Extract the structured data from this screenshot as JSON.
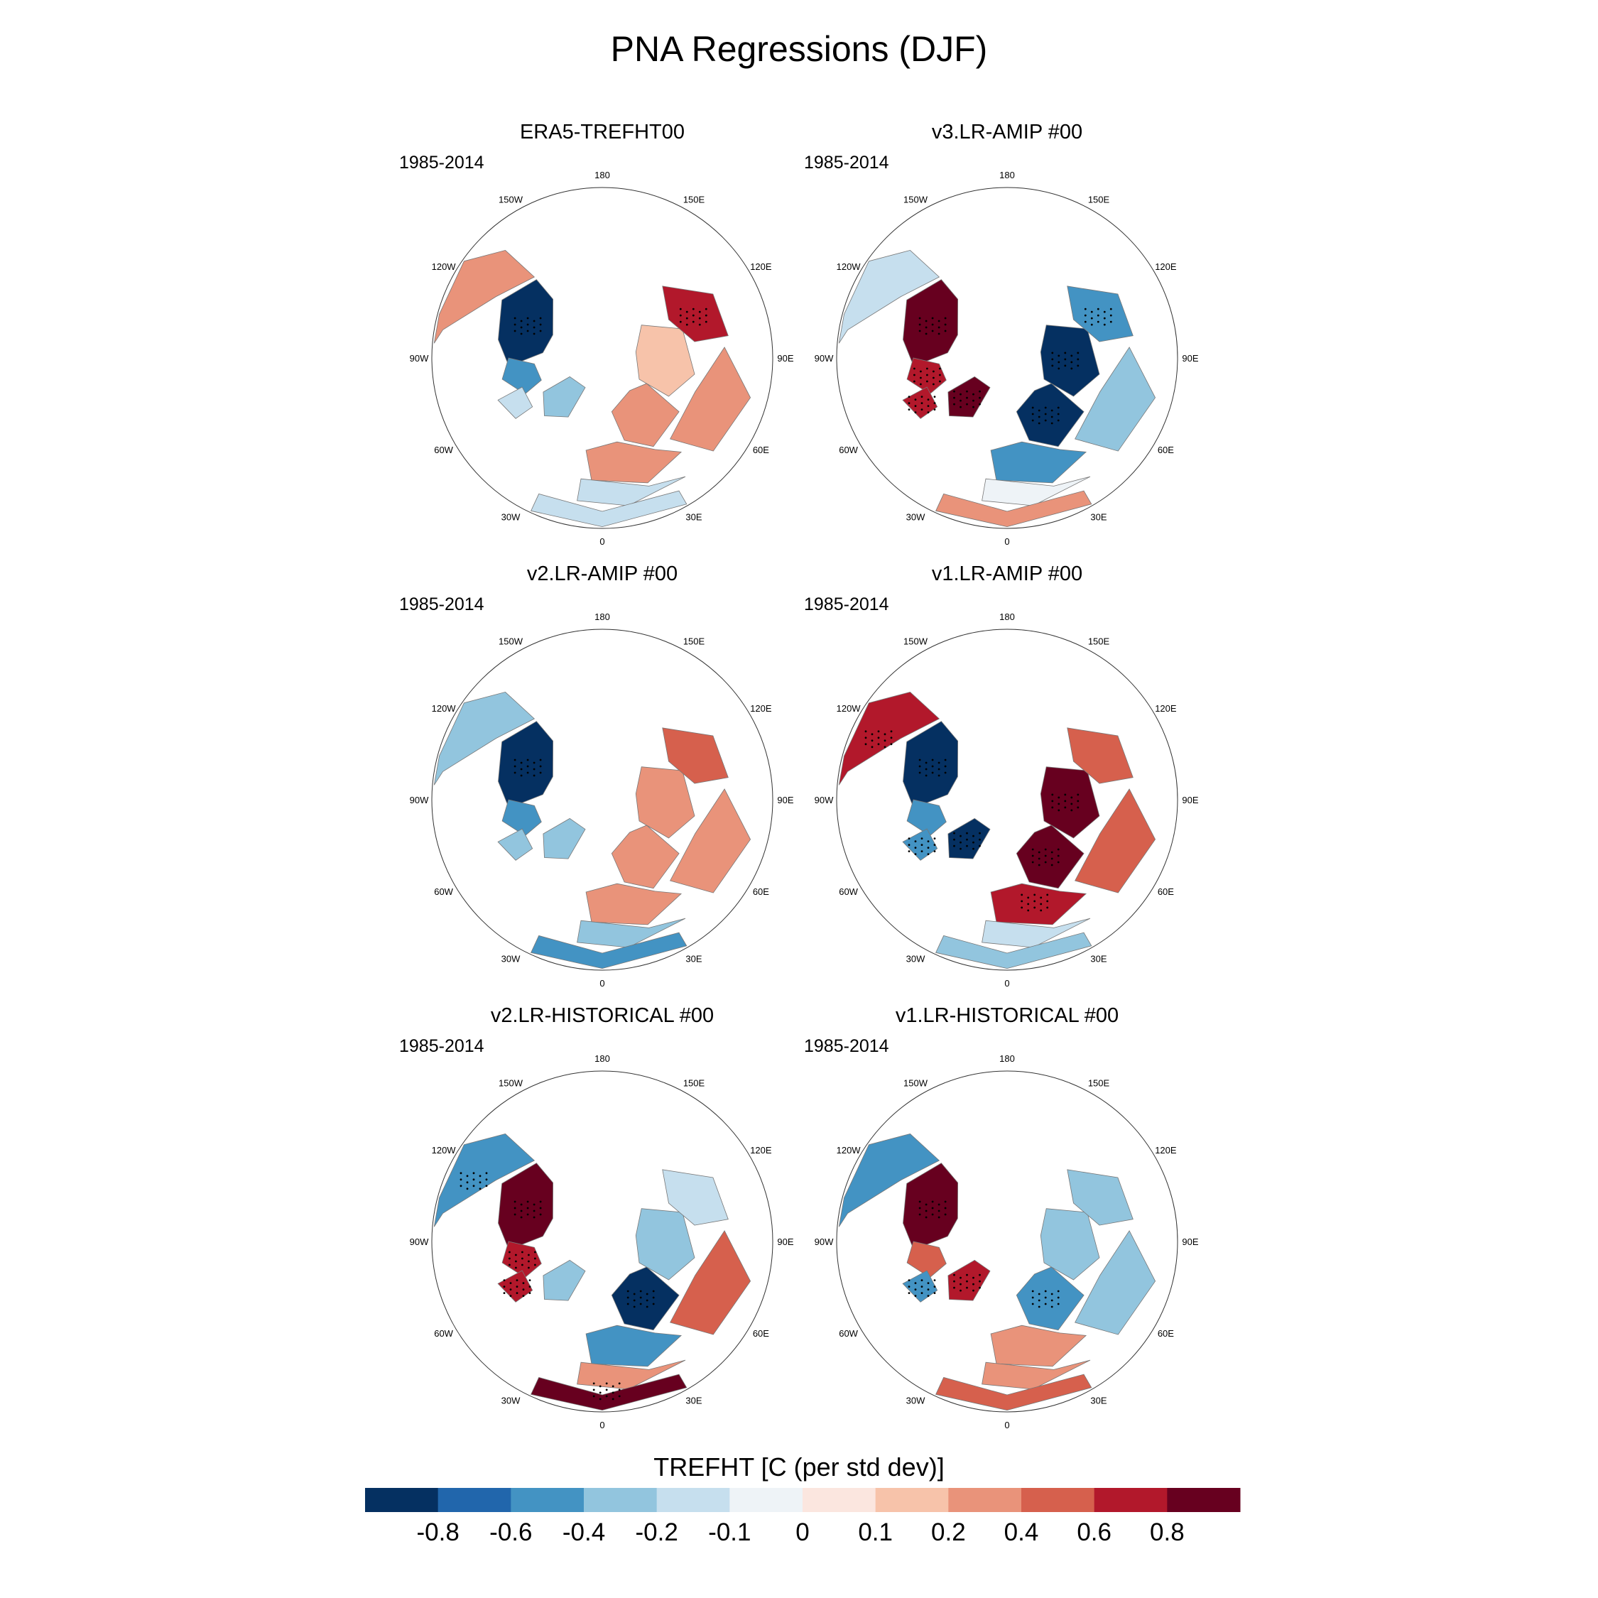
{
  "title": "PNA Regressions (DJF)",
  "chart_data": {
    "type": "heatmap",
    "title": "PNA Regressions (DJF)",
    "projection": "north polar stereographic",
    "variable_label": "TREFHT [C (per std dev)]",
    "longitude_labels": [
      "180",
      "150E",
      "120E",
      "90E",
      "60E",
      "30E",
      "0",
      "30W",
      "60W",
      "90W",
      "120W",
      "150W"
    ],
    "colorbar": {
      "tick_labels": [
        "-0.8",
        "-0.6",
        "-0.4",
        "-0.2",
        "-0.1",
        "0",
        "0.1",
        "0.2",
        "0.4",
        "0.6",
        "0.8"
      ],
      "colors": [
        "#053061",
        "#2166ac",
        "#4393c3",
        "#92c5de",
        "#c6dfee",
        "#eef3f7",
        "#fbe6df",
        "#f7c3aa",
        "#e9937a",
        "#d6604d",
        "#b2182b",
        "#67001f"
      ]
    },
    "panels": [
      {
        "name": "ERA5-TREFHT00",
        "period": "1985-2014",
        "regions": {
          "north_america_west": 0.3,
          "canada": -0.85,
          "hudson_bay": -0.5,
          "greenland": -0.4,
          "scandinavia": 0.3,
          "europe": 0.2,
          "siberia": 0.15,
          "east_siberia": 0.7,
          "central_asia": 0.3,
          "north_africa": -0.15,
          "mediterranean": -0.2,
          "labrador": -0.2
        }
      },
      {
        "name": "v3.LR-AMIP  #00",
        "period": "1985-2014",
        "regions": {
          "north_america_west": -0.2,
          "canada": 0.85,
          "hudson_bay": 0.6,
          "greenland": 0.85,
          "scandinavia": -0.85,
          "europe": -0.5,
          "siberia": -0.85,
          "east_siberia": -0.6,
          "central_asia": -0.3,
          "north_africa": 0.2,
          "mediterranean": -0.1,
          "labrador": 0.7
        }
      },
      {
        "name": "v2.LR-AMIP  #00",
        "period": "1985-2014",
        "regions": {
          "north_america_west": -0.4,
          "canada": -0.85,
          "hudson_bay": -0.5,
          "greenland": -0.3,
          "scandinavia": 0.25,
          "europe": 0.3,
          "siberia": 0.2,
          "east_siberia": 0.5,
          "central_asia": 0.3,
          "north_africa": -0.5,
          "mediterranean": -0.3,
          "labrador": -0.3
        }
      },
      {
        "name": "v1.LR-AMIP  #00",
        "period": "1985-2014",
        "regions": {
          "north_america_west": 0.6,
          "canada": -0.85,
          "hudson_bay": -0.5,
          "greenland": -0.85,
          "scandinavia": 0.85,
          "europe": 0.6,
          "siberia": 0.85,
          "east_siberia": 0.5,
          "central_asia": 0.5,
          "north_africa": -0.3,
          "mediterranean": -0.2,
          "labrador": -0.6
        }
      },
      {
        "name": "v2.LR-HISTORICAL  #00",
        "period": "1985-2014",
        "regions": {
          "north_america_west": -0.6,
          "canada": 0.85,
          "hudson_bay": 0.6,
          "greenland": -0.4,
          "scandinavia": -0.85,
          "europe": -0.5,
          "siberia": -0.3,
          "east_siberia": -0.2,
          "central_asia": 0.5,
          "north_africa": 0.85,
          "mediterranean": 0.3,
          "labrador": 0.7
        }
      },
      {
        "name": "v1.LR-HISTORICAL  #00",
        "period": "1985-2014",
        "regions": {
          "north_america_west": -0.5,
          "canada": 0.85,
          "hudson_bay": 0.5,
          "greenland": 0.6,
          "scandinavia": -0.6,
          "europe": 0.3,
          "siberia": -0.3,
          "east_siberia": -0.3,
          "central_asia": -0.3,
          "north_africa": 0.4,
          "mediterranean": 0.3,
          "labrador": -0.6
        }
      }
    ]
  }
}
